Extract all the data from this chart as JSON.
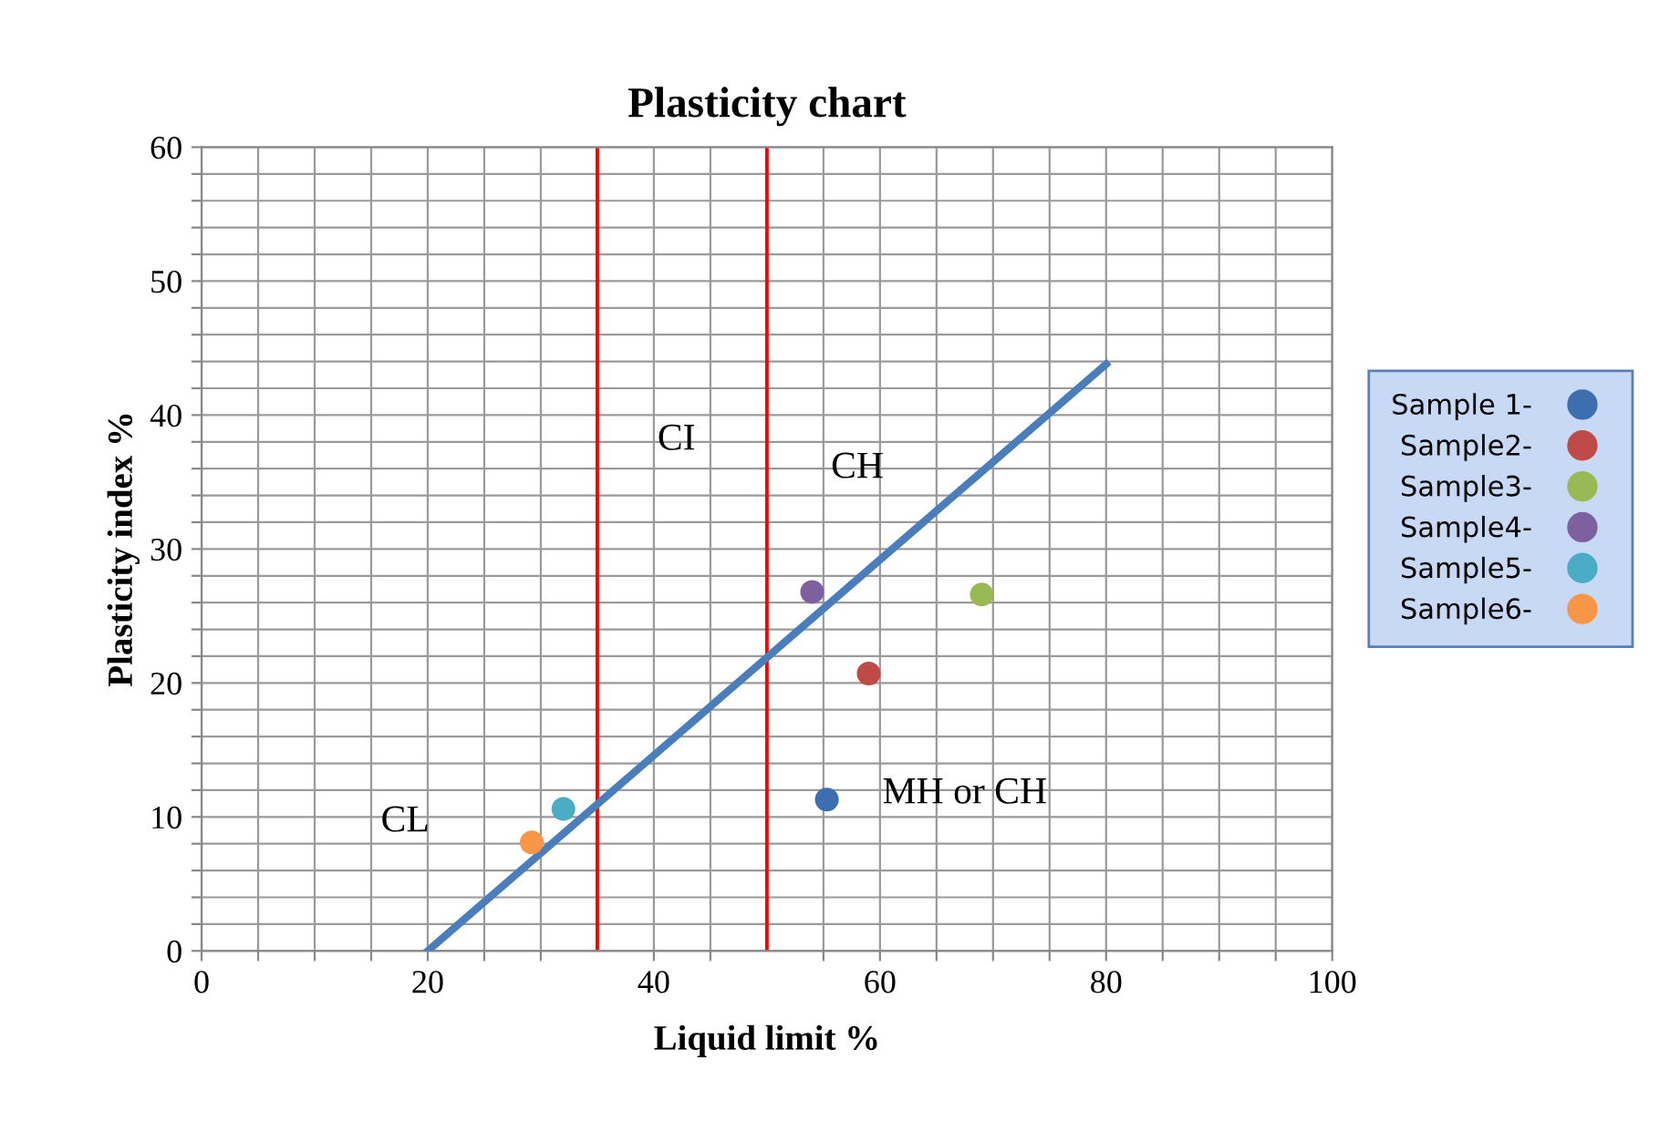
{
  "chart_data": {
    "type": "scatter",
    "title": "Plasticity chart",
    "xlabel": "Liquid limit %",
    "ylabel": "Plasticity index %",
    "xlim": [
      0,
      100
    ],
    "ylim": [
      0,
      60
    ],
    "xticks": [
      0,
      {
        "value": 5,
        "label": null
      },
      {
        "value": 10,
        "label": null
      },
      {
        "value": 15,
        "label": null
      },
      20,
      {
        "value": 25,
        "label": null
      },
      {
        "value": 30,
        "label": null
      },
      40,
      {
        "value": 45,
        "label": null
      },
      {
        "value": 55,
        "label": null
      },
      60,
      {
        "value": 65,
        "label": null
      },
      {
        "value": 70,
        "label": null
      },
      {
        "value": 75,
        "label": null
      },
      80,
      {
        "value": 85,
        "label": null
      },
      {
        "value": 90,
        "label": null
      },
      {
        "value": 95,
        "label": null
      },
      100
    ],
    "yticks": [
      0,
      {
        "value": 2,
        "label": null
      },
      {
        "value": 4,
        "label": null
      },
      {
        "value": 6,
        "label": null
      },
      {
        "value": 8,
        "label": null
      },
      10,
      {
        "value": 12,
        "label": null
      },
      {
        "value": 14,
        "label": null
      },
      {
        "value": 16,
        "label": null
      },
      {
        "value": 18,
        "label": null
      },
      20,
      {
        "value": 22,
        "label": null
      },
      {
        "value": 24,
        "label": null
      },
      {
        "value": 26,
        "label": null
      },
      {
        "value": 28,
        "label": null
      },
      30,
      {
        "value": 32,
        "label": null
      },
      {
        "value": 34,
        "label": null
      },
      {
        "value": 36,
        "label": null
      },
      {
        "value": 38,
        "label": null
      },
      40,
      {
        "value": 42,
        "label": null
      },
      {
        "value": 44,
        "label": null
      },
      {
        "value": 46,
        "label": null
      },
      {
        "value": 48,
        "label": null
      },
      50,
      {
        "value": 52,
        "label": null
      },
      {
        "value": 54,
        "label": null
      },
      {
        "value": 56,
        "label": null
      },
      {
        "value": 58,
        "label": null
      },
      60
    ],
    "grid": true,
    "legend": "right",
    "marker": "circle",
    "series": [
      {
        "name": "Sample 1-",
        "color": "#3d6eaf",
        "x": [
          55.3
        ],
        "values": [
          11.3
        ]
      },
      {
        "name": "Sample2-",
        "color": "#be4b48",
        "x": [
          59.0
        ],
        "values": [
          20.7
        ]
      },
      {
        "name": "Sample3-",
        "color": "#98b954",
        "x": [
          69.0
        ],
        "values": [
          26.6
        ]
      },
      {
        "name": "Sample4-",
        "color": "#7d60a0",
        "x": [
          54.0
        ],
        "values": [
          26.8
        ]
      },
      {
        "name": "Sample5-",
        "color": "#4bacc6",
        "x": [
          32.0
        ],
        "values": [
          10.6
        ]
      },
      {
        "name": "Sample6-",
        "color": "#f79646",
        "x": [
          29.2
        ],
        "values": [
          8.1
        ]
      },
      {
        "type": "line",
        "color": "#4a7ebb",
        "marker": "none",
        "x": [
          20,
          80
        ],
        "values": [
          0,
          43.8
        ]
      }
    ],
    "ref_lines": [
      {
        "axis": "x",
        "value": 35,
        "color": "#ff0000"
      },
      {
        "axis": "x",
        "value": 50,
        "color": "#ff0000"
      }
    ],
    "annotations": [
      "CL",
      "CI",
      "CH",
      "MH or CH"
    ]
  }
}
